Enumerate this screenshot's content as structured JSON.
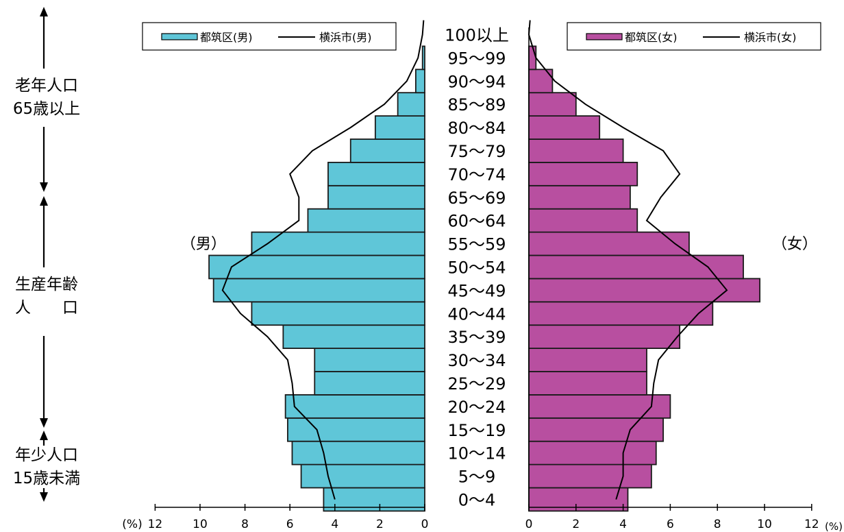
{
  "colors": {
    "male": "#5FC6D8",
    "female": "#B84FA0",
    "line": "#000000"
  },
  "side_groups": [
    {
      "lines": [
        "老年人口",
        "65歳以上"
      ]
    },
    {
      "lines": [
        "生産年齢",
        "人　　口"
      ]
    },
    {
      "lines": [
        "年少人口",
        "15歳未満"
      ]
    }
  ],
  "chart_data": {
    "type": "bar",
    "subtype": "population-pyramid",
    "categories": [
      "0～4",
      "5～9",
      "10～14",
      "15～19",
      "20～24",
      "25～29",
      "30～34",
      "35～39",
      "40～44",
      "45～49",
      "50～54",
      "55～59",
      "60～64",
      "65～69",
      "70～74",
      "75～79",
      "80～84",
      "85～89",
      "90～94",
      "95～99",
      "100以上"
    ],
    "series": [
      {
        "name": "都筑区(男)",
        "kind": "bar",
        "side": "left",
        "values": [
          4.5,
          5.5,
          5.9,
          6.1,
          6.2,
          4.9,
          4.9,
          6.3,
          7.7,
          9.4,
          9.6,
          7.7,
          5.2,
          4.3,
          4.3,
          3.3,
          2.2,
          1.2,
          0.4,
          0.1,
          0.0
        ]
      },
      {
        "name": "横浜市(男)",
        "kind": "line",
        "side": "left",
        "values": [
          4.0,
          4.3,
          4.5,
          4.8,
          5.8,
          5.9,
          6.1,
          7.0,
          8.2,
          9.0,
          8.6,
          7.0,
          5.6,
          5.6,
          6.0,
          5.0,
          3.3,
          1.8,
          0.8,
          0.3,
          0.1
        ]
      },
      {
        "name": "都筑区(女)",
        "kind": "bar",
        "side": "right",
        "values": [
          4.2,
          5.2,
          5.4,
          5.7,
          6.0,
          5.0,
          5.0,
          6.4,
          7.8,
          9.8,
          9.1,
          6.8,
          4.6,
          4.3,
          4.6,
          4.0,
          3.0,
          2.0,
          1.0,
          0.3,
          0.0
        ]
      },
      {
        "name": "横浜市(女)",
        "kind": "line",
        "side": "right",
        "values": [
          3.7,
          4.0,
          4.0,
          4.3,
          5.2,
          5.3,
          5.5,
          6.3,
          7.2,
          8.4,
          7.6,
          6.2,
          5.0,
          5.6,
          6.4,
          5.7,
          4.0,
          2.4,
          1.1,
          0.3,
          0.0
        ]
      }
    ],
    "xlim": [
      0,
      12
    ],
    "x_ticks": [
      "12",
      "10",
      "8",
      "6",
      "4",
      "2",
      "0"
    ],
    "x_ticks_right": [
      "0",
      "2",
      "4",
      "6",
      "8",
      "10",
      "12"
    ],
    "xlabel": "(%)",
    "side_labels": {
      "left": "（男）",
      "right": "（女）"
    },
    "legend_left": [
      {
        "label": "都筑区(男)",
        "kind": "bar"
      },
      {
        "label": "横浜市(男)",
        "kind": "line"
      }
    ],
    "legend_right": [
      {
        "label": "都筑区(女)",
        "kind": "bar"
      },
      {
        "label": "横浜市(女)",
        "kind": "line"
      }
    ],
    "legend_position": "top"
  }
}
